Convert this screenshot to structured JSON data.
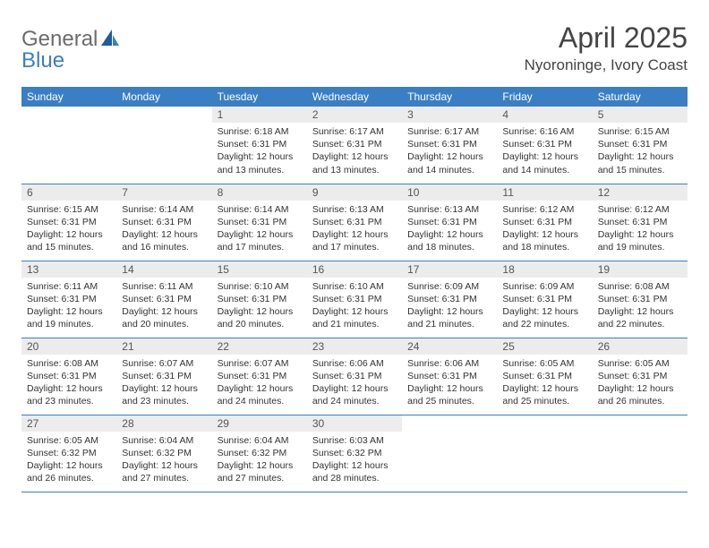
{
  "logo": {
    "part1": "General",
    "part2": "Blue"
  },
  "title": "April 2025",
  "location": "Nyoroninge, Ivory Coast",
  "colors": {
    "accent": "#3a7fc4",
    "header_text": "#ffffff",
    "daybar": "#ececec",
    "text": "#333333",
    "bg": "#ffffff"
  },
  "typography": {
    "title_fontsize": 32,
    "location_fontsize": 17,
    "header_fontsize": 12,
    "cell_fontsize": 10.5
  },
  "day_headers": [
    "Sunday",
    "Monday",
    "Tuesday",
    "Wednesday",
    "Thursday",
    "Friday",
    "Saturday"
  ],
  "weeks": [
    [
      {
        "empty": true
      },
      {
        "empty": true
      },
      {
        "day": "1",
        "sunrise": "Sunrise: 6:18 AM",
        "sunset": "Sunset: 6:31 PM",
        "daylight": "Daylight: 12 hours and 13 minutes."
      },
      {
        "day": "2",
        "sunrise": "Sunrise: 6:17 AM",
        "sunset": "Sunset: 6:31 PM",
        "daylight": "Daylight: 12 hours and 13 minutes."
      },
      {
        "day": "3",
        "sunrise": "Sunrise: 6:17 AM",
        "sunset": "Sunset: 6:31 PM",
        "daylight": "Daylight: 12 hours and 14 minutes."
      },
      {
        "day": "4",
        "sunrise": "Sunrise: 6:16 AM",
        "sunset": "Sunset: 6:31 PM",
        "daylight": "Daylight: 12 hours and 14 minutes."
      },
      {
        "day": "5",
        "sunrise": "Sunrise: 6:15 AM",
        "sunset": "Sunset: 6:31 PM",
        "daylight": "Daylight: 12 hours and 15 minutes."
      }
    ],
    [
      {
        "day": "6",
        "sunrise": "Sunrise: 6:15 AM",
        "sunset": "Sunset: 6:31 PM",
        "daylight": "Daylight: 12 hours and 15 minutes."
      },
      {
        "day": "7",
        "sunrise": "Sunrise: 6:14 AM",
        "sunset": "Sunset: 6:31 PM",
        "daylight": "Daylight: 12 hours and 16 minutes."
      },
      {
        "day": "8",
        "sunrise": "Sunrise: 6:14 AM",
        "sunset": "Sunset: 6:31 PM",
        "daylight": "Daylight: 12 hours and 17 minutes."
      },
      {
        "day": "9",
        "sunrise": "Sunrise: 6:13 AM",
        "sunset": "Sunset: 6:31 PM",
        "daylight": "Daylight: 12 hours and 17 minutes."
      },
      {
        "day": "10",
        "sunrise": "Sunrise: 6:13 AM",
        "sunset": "Sunset: 6:31 PM",
        "daylight": "Daylight: 12 hours and 18 minutes."
      },
      {
        "day": "11",
        "sunrise": "Sunrise: 6:12 AM",
        "sunset": "Sunset: 6:31 PM",
        "daylight": "Daylight: 12 hours and 18 minutes."
      },
      {
        "day": "12",
        "sunrise": "Sunrise: 6:12 AM",
        "sunset": "Sunset: 6:31 PM",
        "daylight": "Daylight: 12 hours and 19 minutes."
      }
    ],
    [
      {
        "day": "13",
        "sunrise": "Sunrise: 6:11 AM",
        "sunset": "Sunset: 6:31 PM",
        "daylight": "Daylight: 12 hours and 19 minutes."
      },
      {
        "day": "14",
        "sunrise": "Sunrise: 6:11 AM",
        "sunset": "Sunset: 6:31 PM",
        "daylight": "Daylight: 12 hours and 20 minutes."
      },
      {
        "day": "15",
        "sunrise": "Sunrise: 6:10 AM",
        "sunset": "Sunset: 6:31 PM",
        "daylight": "Daylight: 12 hours and 20 minutes."
      },
      {
        "day": "16",
        "sunrise": "Sunrise: 6:10 AM",
        "sunset": "Sunset: 6:31 PM",
        "daylight": "Daylight: 12 hours and 21 minutes."
      },
      {
        "day": "17",
        "sunrise": "Sunrise: 6:09 AM",
        "sunset": "Sunset: 6:31 PM",
        "daylight": "Daylight: 12 hours and 21 minutes."
      },
      {
        "day": "18",
        "sunrise": "Sunrise: 6:09 AM",
        "sunset": "Sunset: 6:31 PM",
        "daylight": "Daylight: 12 hours and 22 minutes."
      },
      {
        "day": "19",
        "sunrise": "Sunrise: 6:08 AM",
        "sunset": "Sunset: 6:31 PM",
        "daylight": "Daylight: 12 hours and 22 minutes."
      }
    ],
    [
      {
        "day": "20",
        "sunrise": "Sunrise: 6:08 AM",
        "sunset": "Sunset: 6:31 PM",
        "daylight": "Daylight: 12 hours and 23 minutes."
      },
      {
        "day": "21",
        "sunrise": "Sunrise: 6:07 AM",
        "sunset": "Sunset: 6:31 PM",
        "daylight": "Daylight: 12 hours and 23 minutes."
      },
      {
        "day": "22",
        "sunrise": "Sunrise: 6:07 AM",
        "sunset": "Sunset: 6:31 PM",
        "daylight": "Daylight: 12 hours and 24 minutes."
      },
      {
        "day": "23",
        "sunrise": "Sunrise: 6:06 AM",
        "sunset": "Sunset: 6:31 PM",
        "daylight": "Daylight: 12 hours and 24 minutes."
      },
      {
        "day": "24",
        "sunrise": "Sunrise: 6:06 AM",
        "sunset": "Sunset: 6:31 PM",
        "daylight": "Daylight: 12 hours and 25 minutes."
      },
      {
        "day": "25",
        "sunrise": "Sunrise: 6:05 AM",
        "sunset": "Sunset: 6:31 PM",
        "daylight": "Daylight: 12 hours and 25 minutes."
      },
      {
        "day": "26",
        "sunrise": "Sunrise: 6:05 AM",
        "sunset": "Sunset: 6:31 PM",
        "daylight": "Daylight: 12 hours and 26 minutes."
      }
    ],
    [
      {
        "day": "27",
        "sunrise": "Sunrise: 6:05 AM",
        "sunset": "Sunset: 6:32 PM",
        "daylight": "Daylight: 12 hours and 26 minutes."
      },
      {
        "day": "28",
        "sunrise": "Sunrise: 6:04 AM",
        "sunset": "Sunset: 6:32 PM",
        "daylight": "Daylight: 12 hours and 27 minutes."
      },
      {
        "day": "29",
        "sunrise": "Sunrise: 6:04 AM",
        "sunset": "Sunset: 6:32 PM",
        "daylight": "Daylight: 12 hours and 27 minutes."
      },
      {
        "day": "30",
        "sunrise": "Sunrise: 6:03 AM",
        "sunset": "Sunset: 6:32 PM",
        "daylight": "Daylight: 12 hours and 28 minutes."
      },
      {
        "empty": true
      },
      {
        "empty": true
      },
      {
        "empty": true
      }
    ]
  ]
}
